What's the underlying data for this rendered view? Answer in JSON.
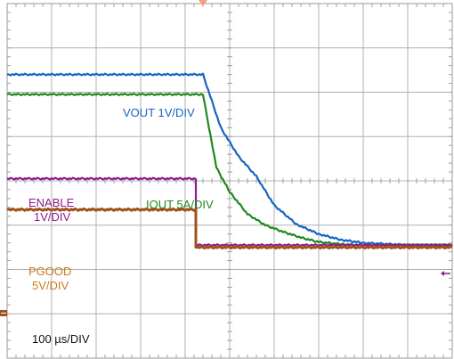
{
  "chart_data": {
    "type": "line",
    "title": "",
    "xlabel": "",
    "ylabel": "",
    "timebase": "100 µs/DIV",
    "grid": true,
    "x_divisions": 10,
    "y_divisions": 8,
    "xlim_div": [
      0,
      10
    ],
    "ylim_div": [
      -4,
      4
    ],
    "trigger_position_div": 4.4,
    "series": [
      {
        "name": "VOUT 1V/DIV",
        "color": "#1565c0",
        "x_div": [
          0,
          4.4,
          4.8,
          5.2,
          5.6,
          6.0,
          6.5,
          7.0,
          7.5,
          8.0,
          9.0,
          10.0
        ],
        "y_div": [
          2.4,
          2.4,
          1.2,
          0.55,
          0.1,
          -0.55,
          -0.98,
          -1.2,
          -1.33,
          -1.4,
          -1.45,
          -1.45
        ]
      },
      {
        "name": "IOUT 5A/DIV",
        "color": "#1e8a1e",
        "x_div": [
          0,
          4.4,
          4.7,
          5.0,
          5.4,
          5.8,
          6.2,
          6.6,
          7.0,
          7.5,
          8.0,
          9.0,
          10.0
        ],
        "y_div": [
          1.95,
          1.95,
          0.3,
          -0.25,
          -0.75,
          -1.0,
          -1.15,
          -1.28,
          -1.38,
          -1.43,
          -1.45,
          -1.45,
          -1.45
        ]
      },
      {
        "name": "ENABLE 1V/DIV",
        "color": "#8e1b8e",
        "x_div": [
          0,
          4.24,
          4.24,
          10.0
        ],
        "y_div": [
          0.05,
          0.05,
          -1.45,
          -1.45
        ]
      },
      {
        "name": "PGOOD 5V/DIV",
        "color": "#a0521d",
        "x_div": [
          0,
          4.24,
          4.24,
          10.0
        ],
        "y_div": [
          -0.65,
          -0.65,
          -1.5,
          -1.5
        ]
      }
    ],
    "labels": {
      "vout": "VOUT 1V/DIV",
      "iout": "IOUT 5A/DIV",
      "enable_line1": "ENABLE",
      "enable_line2": "1V/DIV",
      "pgood_line1": "PGOOD",
      "pgood_line2": "5V/DIV",
      "timebase": "100 µs/DIV"
    }
  }
}
